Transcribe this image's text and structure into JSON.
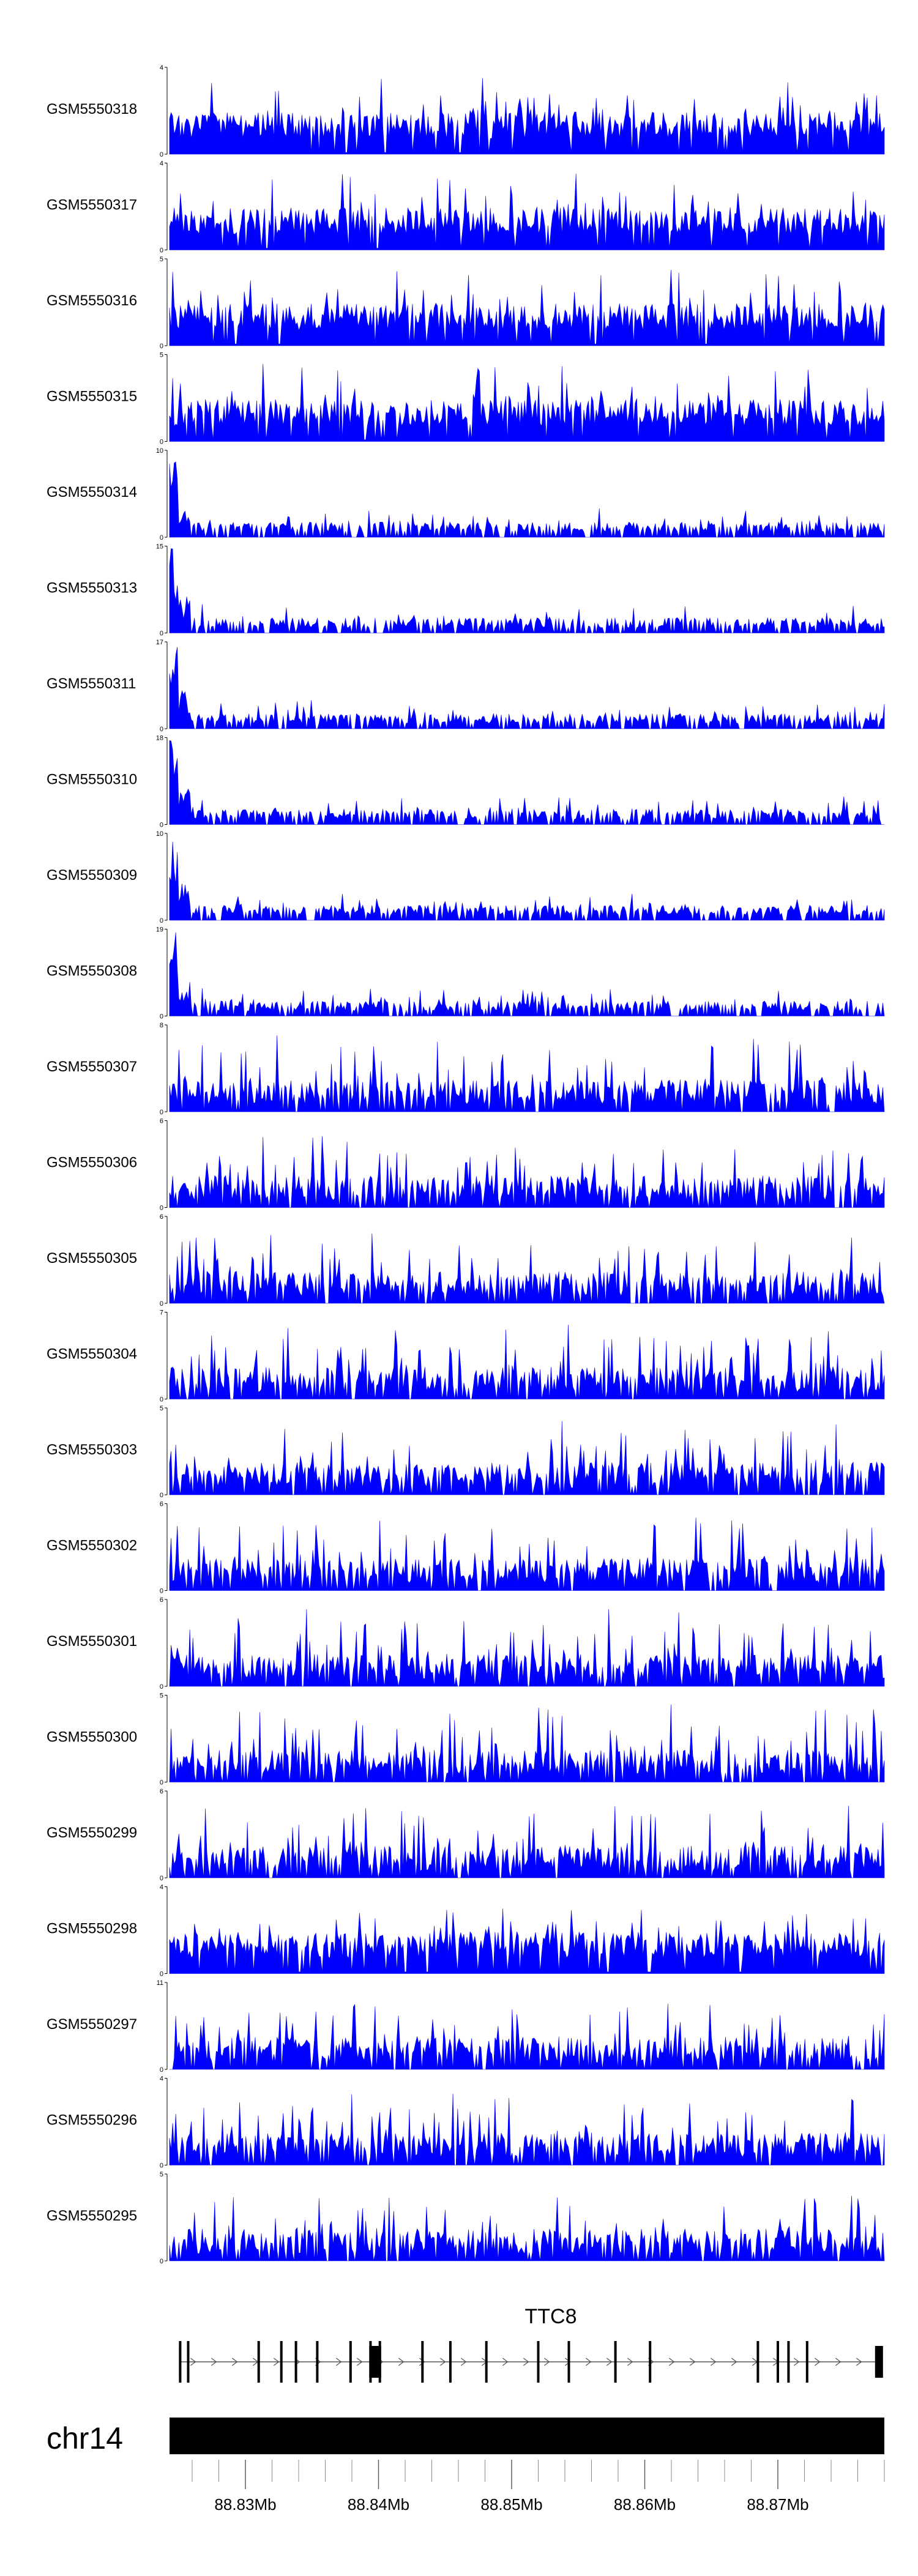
{
  "chart_data": {
    "type": "area",
    "color": "#0000ff",
    "tracks": [
      {
        "name": "GSM5550318",
        "ymax": 4,
        "seed": 318,
        "profile": "dense"
      },
      {
        "name": "GSM5550317",
        "ymax": 4,
        "seed": 317,
        "profile": "dense"
      },
      {
        "name": "GSM5550316",
        "ymax": 5,
        "seed": 316,
        "profile": "dense"
      },
      {
        "name": "GSM5550315",
        "ymax": 5,
        "seed": 315,
        "profile": "dense"
      },
      {
        "name": "GSM5550314",
        "ymax": 10,
        "seed": 314,
        "profile": "leftpeak"
      },
      {
        "name": "GSM5550313",
        "ymax": 15,
        "seed": 313,
        "profile": "leftpeak"
      },
      {
        "name": "GSM5550311",
        "ymax": 17,
        "seed": 311,
        "profile": "leftpeak"
      },
      {
        "name": "GSM5550310",
        "ymax": 18,
        "seed": 310,
        "profile": "leftpeak"
      },
      {
        "name": "GSM5550309",
        "ymax": 10,
        "seed": 309,
        "profile": "leftpeak"
      },
      {
        "name": "GSM5550308",
        "ymax": 19,
        "seed": 308,
        "profile": "leftpeak"
      },
      {
        "name": "GSM5550307",
        "ymax": 8,
        "seed": 307,
        "profile": "spiky"
      },
      {
        "name": "GSM5550306",
        "ymax": 6,
        "seed": 306,
        "profile": "spiky"
      },
      {
        "name": "GSM5550305",
        "ymax": 6,
        "seed": 305,
        "profile": "spiky"
      },
      {
        "name": "GSM5550304",
        "ymax": 7,
        "seed": 304,
        "profile": "spiky"
      },
      {
        "name": "GSM5550303",
        "ymax": 5,
        "seed": 303,
        "profile": "spiky"
      },
      {
        "name": "GSM5550302",
        "ymax": 6,
        "seed": 302,
        "profile": "spiky"
      },
      {
        "name": "GSM5550301",
        "ymax": 6,
        "seed": 301,
        "profile": "spiky"
      },
      {
        "name": "GSM5550300",
        "ymax": 5,
        "seed": 300,
        "profile": "spiky"
      },
      {
        "name": "GSM5550299",
        "ymax": 6,
        "seed": 299,
        "profile": "spiky"
      },
      {
        "name": "GSM5550298",
        "ymax": 4,
        "seed": 298,
        "profile": "dense"
      },
      {
        "name": "GSM5550297",
        "ymax": 11,
        "seed": 297,
        "profile": "spiky"
      },
      {
        "name": "GSM5550296",
        "ymax": 4,
        "seed": 296,
        "profile": "spiky"
      },
      {
        "name": "GSM5550295",
        "ymax": 5,
        "seed": 295,
        "profile": "spiky"
      }
    ],
    "gene": {
      "name": "TTC8",
      "exons_mb": [
        88.8251,
        88.8257,
        88.831,
        88.8327,
        88.8338,
        88.8354,
        88.8379,
        88.8394,
        88.8396,
        88.8399,
        88.8401,
        88.8433,
        88.8454,
        88.8481,
        88.852,
        88.8543,
        88.8578,
        88.8604,
        88.8685,
        88.87,
        88.8708,
        88.8722,
        88.8776
      ],
      "thick_exons_mb": [
        88.8396,
        88.8399,
        88.8776
      ]
    },
    "chromosome": "chr14",
    "x_axis": {
      "range_mb": [
        88.8243,
        88.878
      ],
      "ticks_mb": [
        88.83,
        88.84,
        88.85,
        88.86,
        88.87
      ],
      "tick_labels": [
        "88.83Mb",
        "88.84Mb",
        "88.85Mb",
        "88.86Mb",
        "88.87Mb"
      ],
      "minor_step_mb": 0.002
    }
  }
}
